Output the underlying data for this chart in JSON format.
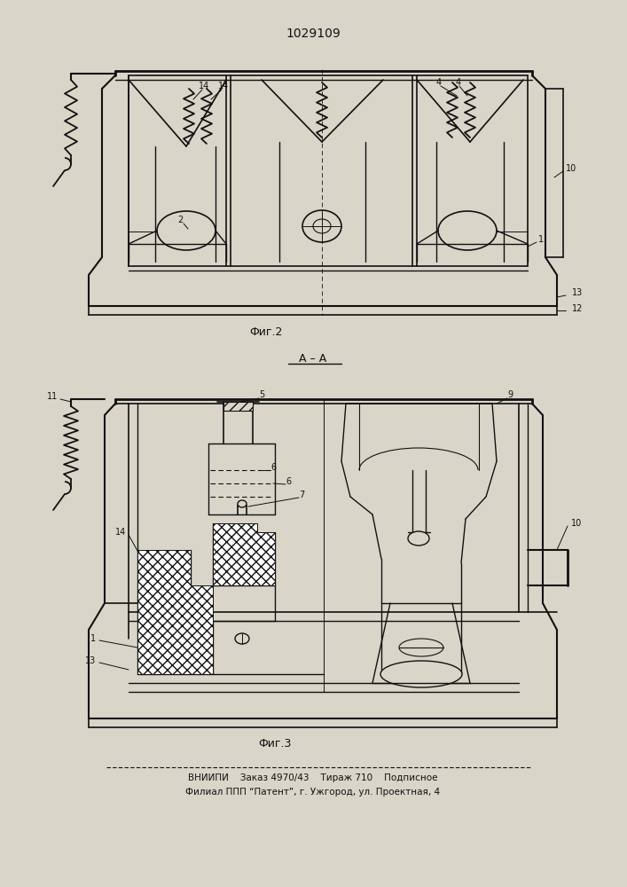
{
  "title": "1029109",
  "fig1_label": "Фиг.2",
  "fig2_label": "Фиг.3",
  "section_label": "A – A",
  "footer_line1": "ВНИИПИ    Заказ 4970/43    Тираж 710    Подписное",
  "footer_line2": "Филиал ППП “Патент”, г. Ужгород, ул. Проектная, 4",
  "bg_color": "#d9d5c8",
  "line_color": "#111111"
}
